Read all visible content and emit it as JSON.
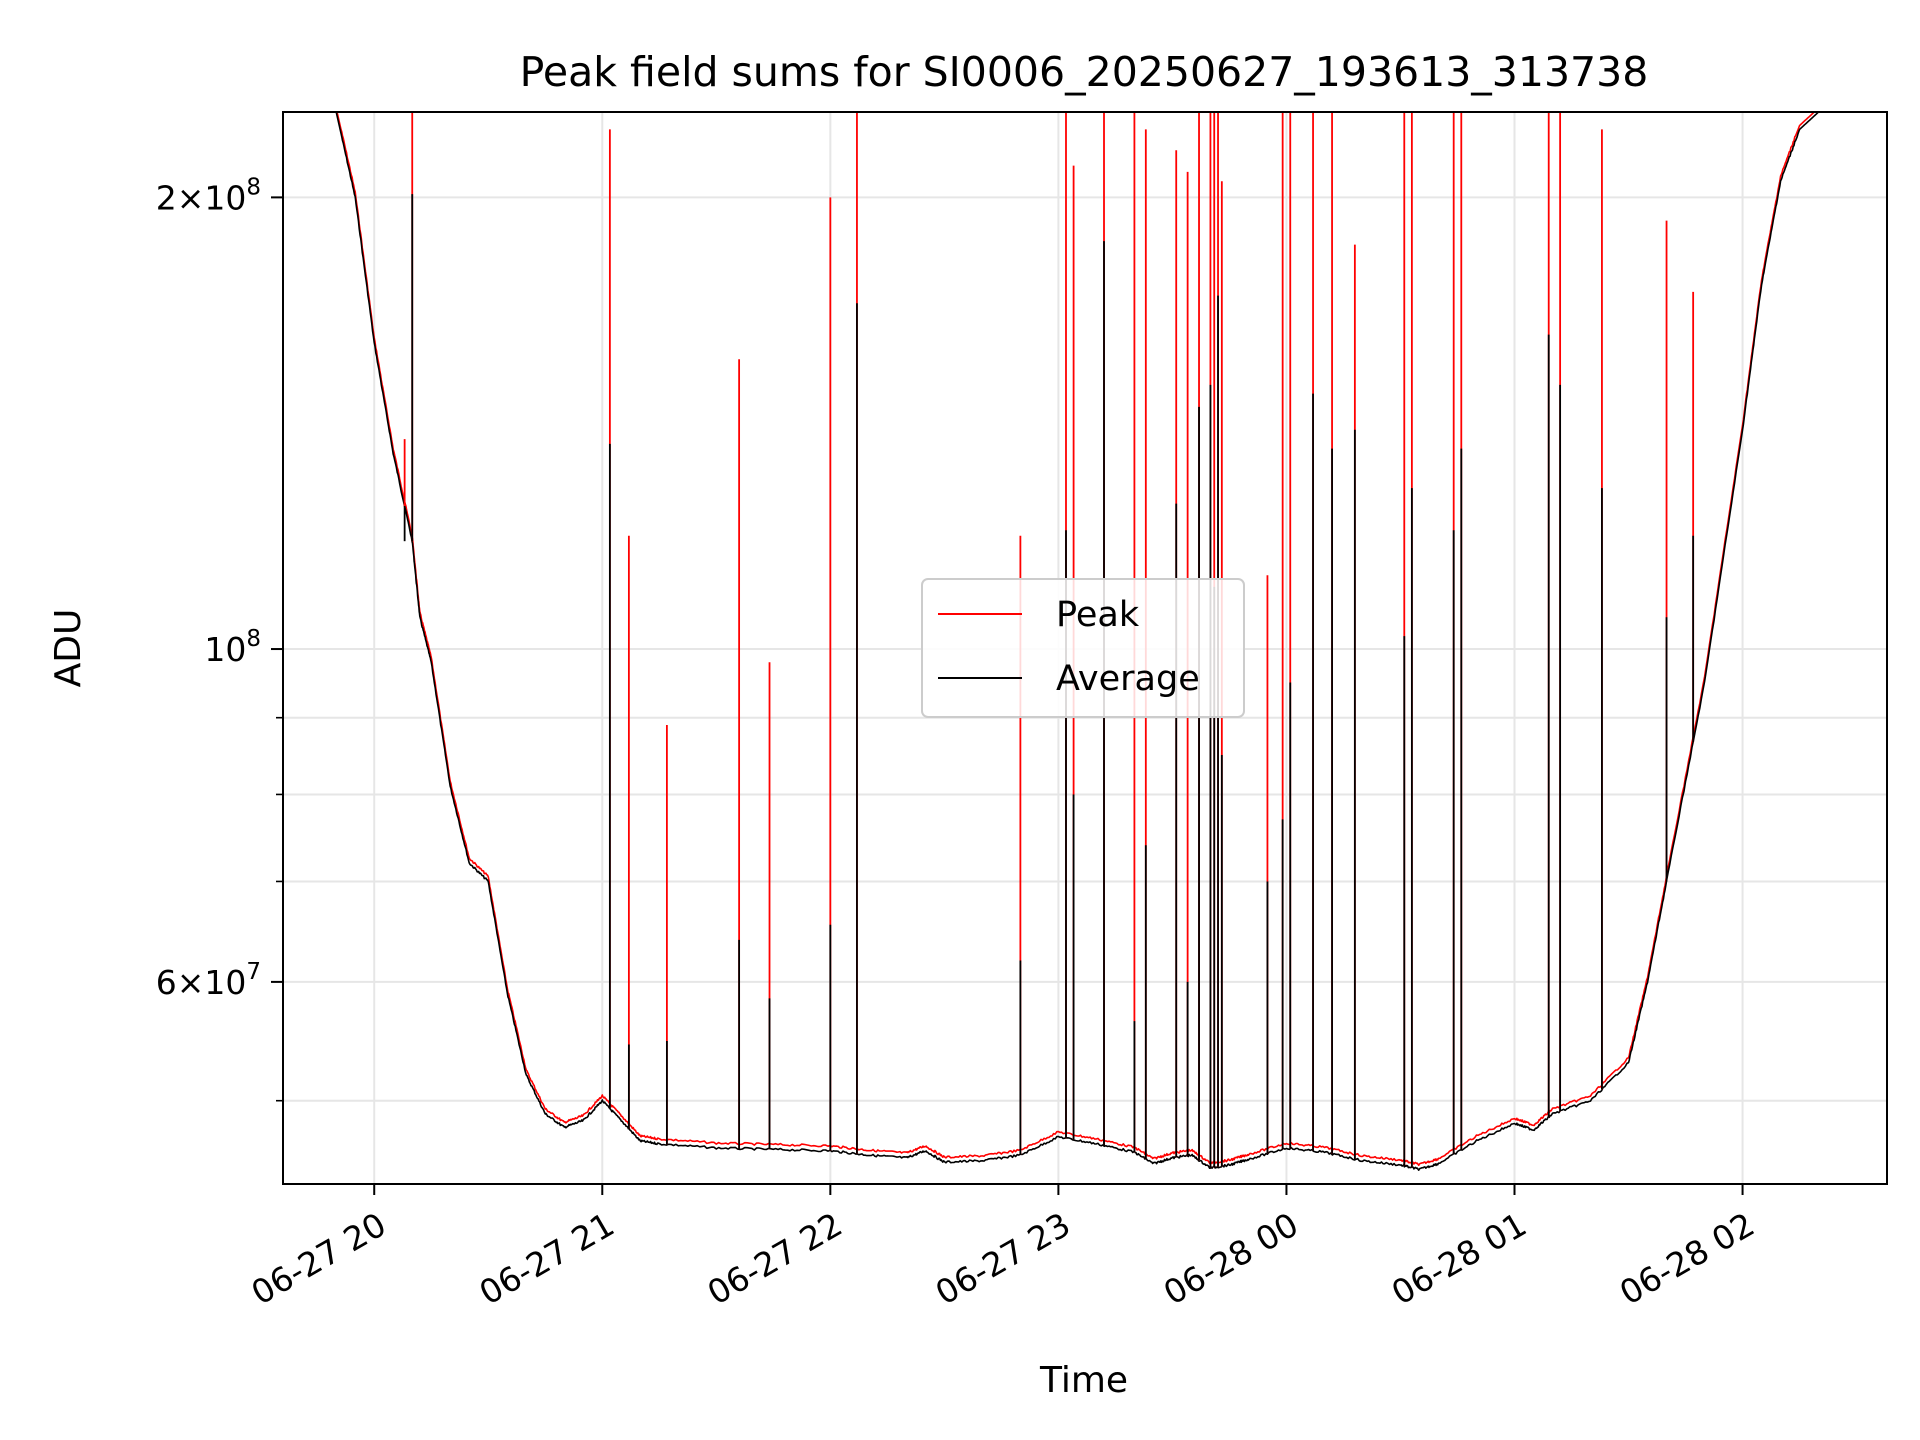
{
  "chart_data": {
    "type": "line",
    "title": "Peak field sums for SI0006_20250627_193613_313738",
    "xlabel": "Time",
    "ylabel": "ADU",
    "yscale": "log",
    "xlim": [
      "2025-06-27T19:36",
      "2025-06-28T02:38"
    ],
    "ylim": [
      44000000.0,
      228000000.0
    ],
    "grid": true,
    "legend": {
      "placement": "center",
      "entries": [
        "Peak",
        "Average"
      ]
    },
    "x_ticks": [
      {
        "t": "2025-06-27T20:00",
        "label": "06-27 20"
      },
      {
        "t": "2025-06-27T21:00",
        "label": "06-27 21"
      },
      {
        "t": "2025-06-27T22:00",
        "label": "06-27 22"
      },
      {
        "t": "2025-06-27T23:00",
        "label": "06-27 23"
      },
      {
        "t": "2025-06-28T00:00",
        "label": "06-28 00"
      },
      {
        "t": "2025-06-28T01:00",
        "label": "06-28 01"
      },
      {
        "t": "2025-06-28T02:00",
        "label": "06-28 02"
      }
    ],
    "y_ticks": [
      {
        "value": 200000000,
        "mant": "2",
        "exp": "8"
      },
      {
        "value": 100000000,
        "mant": "",
        "exp": "8"
      },
      {
        "value": 60000000,
        "mant": "6",
        "exp": "7"
      }
    ],
    "y_minor_ticks": [
      50000000,
      70000000,
      80000000,
      90000000
    ],
    "baseline": {
      "x": [
        "2025-06-27T19:36",
        "2025-06-27T19:50",
        "2025-06-27T19:55",
        "2025-06-27T20:00",
        "2025-06-27T20:05",
        "2025-06-27T20:10",
        "2025-06-27T20:12",
        "2025-06-27T20:15",
        "2025-06-27T20:20",
        "2025-06-27T20:25",
        "2025-06-27T20:30",
        "2025-06-27T20:35",
        "2025-06-27T20:40",
        "2025-06-27T20:45",
        "2025-06-27T20:50",
        "2025-06-27T20:55",
        "2025-06-27T21:00",
        "2025-06-27T21:05",
        "2025-06-27T21:10",
        "2025-06-27T21:15",
        "2025-06-27T21:30",
        "2025-06-27T21:45",
        "2025-06-27T22:00",
        "2025-06-27T22:10",
        "2025-06-27T22:20",
        "2025-06-27T22:25",
        "2025-06-27T22:30",
        "2025-06-27T22:40",
        "2025-06-27T22:50",
        "2025-06-27T23:00",
        "2025-06-27T23:10",
        "2025-06-27T23:20",
        "2025-06-27T23:25",
        "2025-06-27T23:30",
        "2025-06-27T23:35",
        "2025-06-27T23:40",
        "2025-06-27T23:45",
        "2025-06-27T23:50",
        "2025-06-28T00:00",
        "2025-06-28T00:10",
        "2025-06-28T00:20",
        "2025-06-28T00:30",
        "2025-06-28T00:35",
        "2025-06-28T00:40",
        "2025-06-28T00:50",
        "2025-06-28T01:00",
        "2025-06-28T01:05",
        "2025-06-28T01:10",
        "2025-06-28T01:20",
        "2025-06-28T01:30",
        "2025-06-28T01:35",
        "2025-06-28T01:40",
        "2025-06-28T01:50",
        "2025-06-28T02:00",
        "2025-06-28T02:05",
        "2025-06-28T02:10",
        "2025-06-28T02:15",
        "2025-06-28T02:20",
        "2025-06-28T02:25",
        "2025-06-28T02:38"
      ],
      "average": [
        228000000,
        228000000,
        200000000,
        160000000,
        135000000,
        118000000,
        105000000,
        98000000,
        81000000,
        72000000,
        70000000,
        59000000,
        52000000,
        49000000,
        48000000,
        48500000,
        50000000,
        48500000,
        47000000,
        46800000,
        46500000,
        46400000,
        46300000,
        46000000,
        45800000,
        46300000,
        45500000,
        45600000,
        46000000,
        47300000,
        46800000,
        46200000,
        45400000,
        45800000,
        46000000,
        45100000,
        45300000,
        45700000,
        46500000,
        46200000,
        45600000,
        45300000,
        45000000,
        45400000,
        47000000,
        48300000,
        47800000,
        49000000,
        50000000,
        53000000,
        60000000,
        70000000,
        95000000,
        140000000,
        175000000,
        205000000,
        222000000,
        228000000,
        228000000,
        228000000
      ],
      "peak_offset_fraction": 0.006
    },
    "spikes": [
      {
        "t": "2025-06-27T20:08",
        "peak": 138000000,
        "average": 118000000
      },
      {
        "t": "2025-06-27T20:10",
        "peak": 228000000,
        "average": 201000000
      },
      {
        "t": "2025-06-27T21:02",
        "peak": 222000000,
        "average": 137000000
      },
      {
        "t": "2025-06-27T21:07",
        "peak": 119000000,
        "average": 54500000
      },
      {
        "t": "2025-06-27T21:17",
        "peak": 89000000,
        "average": 54800000
      },
      {
        "t": "2025-06-27T21:36",
        "peak": 156000000,
        "average": 64000000
      },
      {
        "t": "2025-06-27T21:44",
        "peak": 98000000,
        "average": 58500000
      },
      {
        "t": "2025-06-27T22:00",
        "peak": 200000000,
        "average": 65500000
      },
      {
        "t": "2025-06-27T22:07",
        "peak": 228000000,
        "average": 170000000
      },
      {
        "t": "2025-06-27T22:50",
        "peak": 119000000,
        "average": 62000000
      },
      {
        "t": "2025-06-27T23:02",
        "peak": 228000000,
        "average": 120000000
      },
      {
        "t": "2025-06-27T23:04",
        "peak": 210000000,
        "average": 80000000
      },
      {
        "t": "2025-06-27T23:12",
        "peak": 228000000,
        "average": 187000000
      },
      {
        "t": "2025-06-27T23:20",
        "peak": 228000000,
        "average": 56500000
      },
      {
        "t": "2025-06-27T23:23",
        "peak": 222000000,
        "average": 74000000
      },
      {
        "t": "2025-06-27T23:31",
        "peak": 215000000,
        "average": 125000000
      },
      {
        "t": "2025-06-27T23:34",
        "peak": 208000000,
        "average": 60000000
      },
      {
        "t": "2025-06-27T23:37",
        "peak": 228000000,
        "average": 145000000
      },
      {
        "t": "2025-06-27T23:40",
        "peak": 228000000,
        "average": 150000000
      },
      {
        "t": "2025-06-27T23:41",
        "peak": 228000000,
        "average": 110000000
      },
      {
        "t": "2025-06-27T23:42",
        "peak": 228000000,
        "average": 172000000
      },
      {
        "t": "2025-06-27T23:43",
        "peak": 205000000,
        "average": 85000000
      },
      {
        "t": "2025-06-27T23:55",
        "peak": 112000000,
        "average": 70000000
      },
      {
        "t": "2025-06-27T23:59",
        "peak": 228000000,
        "average": 77000000
      },
      {
        "t": "2025-06-28T00:01",
        "peak": 228000000,
        "average": 95000000
      },
      {
        "t": "2025-06-28T00:07",
        "peak": 228000000,
        "average": 148000000
      },
      {
        "t": "2025-06-28T00:12",
        "peak": 228000000,
        "average": 136000000
      },
      {
        "t": "2025-06-28T00:18",
        "peak": 186000000,
        "average": 140000000
      },
      {
        "t": "2025-06-28T00:31",
        "peak": 228000000,
        "average": 102000000
      },
      {
        "t": "2025-06-28T00:33",
        "peak": 228000000,
        "average": 128000000
      },
      {
        "t": "2025-06-28T00:44",
        "peak": 228000000,
        "average": 120000000
      },
      {
        "t": "2025-06-28T00:46",
        "peak": 228000000,
        "average": 136000000
      },
      {
        "t": "2025-06-28T01:09",
        "peak": 228000000,
        "average": 162000000
      },
      {
        "t": "2025-06-28T01:12",
        "peak": 228000000,
        "average": 150000000
      },
      {
        "t": "2025-06-28T01:23",
        "peak": 222000000,
        "average": 128000000
      },
      {
        "t": "2025-06-28T01:40",
        "peak": 193000000,
        "average": 105000000
      },
      {
        "t": "2025-06-28T01:47",
        "peak": 173000000,
        "average": 119000000
      }
    ],
    "series": [
      {
        "name": "Peak",
        "color": "#ff0000"
      },
      {
        "name": "Average",
        "color": "#000000"
      }
    ]
  }
}
